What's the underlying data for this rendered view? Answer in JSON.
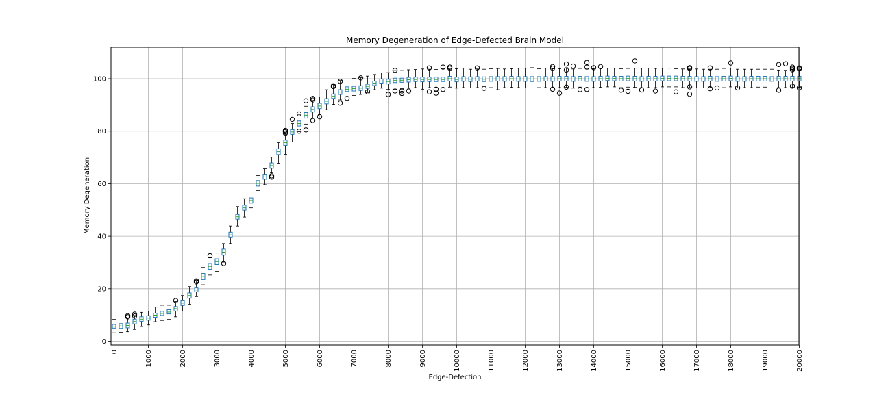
{
  "chart_data": {
    "type": "boxplot",
    "title": "Memory Degeneration of Edge-Defected Brain Model",
    "xlabel": "Edge-Defection",
    "ylabel": "Memory Degeneration",
    "ylim": [
      -1.5,
      112
    ],
    "xlim": [
      0,
      20000
    ],
    "grid": true,
    "x_tick_labels": [
      "0",
      "1000",
      "2000",
      "3000",
      "4000",
      "5000",
      "6000",
      "7000",
      "8000",
      "9000",
      "10000",
      "11000",
      "12000",
      "13000",
      "14000",
      "15000",
      "16000",
      "17000",
      "18000",
      "19000",
      "20000"
    ],
    "y_ticks": [
      0,
      20,
      40,
      60,
      80,
      100
    ],
    "box_color": "#1f77b4",
    "median_color": "#2ca02c",
    "whisker_color": "#000000",
    "x": [
      0,
      200,
      400,
      600,
      800,
      1000,
      1200,
      1400,
      1600,
      1800,
      2000,
      2200,
      2400,
      2600,
      2800,
      3000,
      3200,
      3400,
      3600,
      3800,
      4000,
      4200,
      4400,
      4600,
      4800,
      5000,
      5200,
      5400,
      5600,
      5800,
      6000,
      6200,
      6400,
      6600,
      6800,
      7000,
      7200,
      7400,
      7600,
      7800,
      8000,
      8200,
      8400,
      8600,
      8800,
      9000,
      9200,
      9400,
      9600,
      9800,
      10000,
      10200,
      10400,
      10600,
      10800,
      11000,
      11200,
      11400,
      11600,
      11800,
      12000,
      12200,
      12400,
      12600,
      12800,
      13000,
      13200,
      13400,
      13600,
      13800,
      14000,
      14200,
      14400,
      14600,
      14800,
      15000,
      15200,
      15400,
      15600,
      15800,
      16000,
      16200,
      16400,
      16600,
      16800,
      17000,
      17200,
      17400,
      17600,
      17800,
      18000,
      18200,
      18400,
      18600,
      18800,
      19000,
      19200,
      19400,
      19600,
      19800,
      20000
    ],
    "medians": [
      5.7,
      5.8,
      6,
      7.5,
      8.4,
      8.8,
      9.9,
      10.6,
      11.1,
      12.4,
      14.5,
      17.4,
      19.5,
      24.6,
      28.5,
      30.3,
      33.9,
      40.5,
      47.4,
      50.8,
      53.6,
      60.1,
      62.6,
      66.9,
      72.2,
      75.6,
      79.7,
      82.9,
      86.1,
      88.3,
      89.6,
      91.4,
      93.3,
      94.9,
      96,
      96.2,
      96.4,
      97.1,
      98.3,
      99.1,
      98.9,
      99.3,
      99.4,
      99.6,
      99.7,
      99.7,
      99.7,
      99.7,
      99.7,
      100,
      99.7,
      99.9,
      99.8,
      99.9,
      99.8,
      99.9,
      99.9,
      99.9,
      100,
      99.9,
      99.9,
      99.9,
      99.9,
      99.9,
      99.9,
      100,
      100,
      99.9,
      100,
      99.9,
      99.9,
      100,
      100.1,
      100.1,
      100,
      100.1,
      100,
      99.9,
      100,
      100,
      100.1,
      100.1,
      100.1,
      100,
      100,
      99.9,
      99.9,
      100,
      99.9,
      100,
      100.1,
      99.9,
      99.9,
      100,
      100,
      100,
      99.9,
      100,
      100,
      100,
      100
    ],
    "q1": [
      5,
      4.9,
      5.1,
      6.6,
      7.6,
      8,
      9.1,
      9.8,
      10.4,
      11.5,
      13.6,
      16.4,
      18.8,
      23.5,
      27.4,
      29.2,
      32.8,
      39.7,
      46.5,
      49.9,
      52.6,
      59.1,
      61.7,
      65.9,
      71.1,
      74.6,
      78.8,
      82,
      85,
      87.3,
      88.6,
      90.4,
      92.5,
      94,
      95.1,
      95.3,
      95.5,
      96.3,
      97.4,
      98.3,
      98,
      98.5,
      98.6,
      98.7,
      98.9,
      98.8,
      98.9,
      98.9,
      98.9,
      99.1,
      98.8,
      99,
      98.9,
      99.1,
      98.9,
      99,
      99.1,
      99,
      99.1,
      99,
      99,
      98.9,
      99,
      99.1,
      99,
      99.1,
      99.1,
      99,
      99.1,
      99,
      99,
      99.1,
      99.3,
      99.2,
      99.1,
      99.2,
      99.1,
      99,
      99.1,
      99.1,
      99.2,
      99.2,
      99.2,
      99.1,
      99.1,
      99,
      99,
      99.1,
      99,
      99.1,
      99.2,
      99,
      99,
      99.1,
      99.1,
      99.1,
      99,
      99.1,
      99.1,
      99.1,
      99.1
    ],
    "q3": [
      6.4,
      6.7,
      6.9,
      8.4,
      9.3,
      9.7,
      10.7,
      11.4,
      12,
      13.2,
      15.4,
      18.4,
      20.3,
      25.8,
      29.6,
      31.4,
      35.1,
      41.5,
      48.3,
      51.8,
      54.6,
      61.2,
      63.6,
      67.9,
      73.3,
      76.6,
      80.6,
      83.9,
      87.1,
      89.3,
      90.6,
      92.4,
      94.2,
      95.8,
      96.9,
      97.1,
      97.3,
      97.9,
      99.1,
      99.9,
      99.8,
      100.2,
      100.2,
      100.5,
      100.6,
      100.6,
      100.6,
      100.6,
      100.6,
      100.9,
      100.6,
      100.8,
      100.7,
      100.8,
      100.7,
      100.8,
      100.8,
      100.8,
      100.9,
      100.8,
      100.8,
      100.8,
      100.8,
      100.8,
      100.8,
      100.9,
      100.9,
      100.8,
      100.9,
      100.8,
      100.8,
      100.9,
      101,
      100.9,
      100.9,
      101,
      100.9,
      100.8,
      100.9,
      100.9,
      101,
      101,
      101,
      100.9,
      100.9,
      100.8,
      100.8,
      100.9,
      100.8,
      100.9,
      101,
      100.8,
      100.8,
      100.9,
      100.9,
      100.9,
      100.8,
      100.9,
      100.9,
      100.9,
      100.9
    ],
    "whisker_low": [
      3.2,
      3.4,
      3.6,
      4.5,
      5.6,
      6.2,
      7.4,
      7.9,
      8.3,
      9.3,
      11.5,
      14.1,
      17,
      21.5,
      25.2,
      26.6,
      30.1,
      37.2,
      43.9,
      47.3,
      50.8,
      57.4,
      59.6,
      64.1,
      67.8,
      71.2,
      75.9,
      79.8,
      82.7,
      84.8,
      86.4,
      88.2,
      90.2,
      91.9,
      93.1,
      93.6,
      94,
      94.7,
      95.8,
      96.4,
      95.9,
      96,
      96.2,
      96.4,
      96.6,
      96,
      96.6,
      96.6,
      96.5,
      96.8,
      96.4,
      96.6,
      96.5,
      96.6,
      96.5,
      96.6,
      95.8,
      96.6,
      96.7,
      96.6,
      96.5,
      96.5,
      96.6,
      96.6,
      96.6,
      96.6,
      96.7,
      96.4,
      96.8,
      96.5,
      96.6,
      96.7,
      96.9,
      96.9,
      96.6,
      96.8,
      96.7,
      96.6,
      96.6,
      96.6,
      96.9,
      96.9,
      96.9,
      96.6,
      96.6,
      96.5,
      96.5,
      96.6,
      96.5,
      96.6,
      96.9,
      96.5,
      96.6,
      96.6,
      96.8,
      96.8,
      96.5,
      96.6,
      96.6,
      96.7,
      96.7
    ],
    "whisker_high": [
      8.3,
      8.1,
      8.8,
      9.8,
      11,
      11.5,
      13,
      13.7,
      13.7,
      15.1,
      17.4,
      20.8,
      23.1,
      28.1,
      31.8,
      33.6,
      37.2,
      43.9,
      51.3,
      54.3,
      57.6,
      63.1,
      65.7,
      70.1,
      75.6,
      78.7,
      82.9,
      86.4,
      89.5,
      91.5,
      93.1,
      95.8,
      97.8,
      99.3,
      99.9,
      100.1,
      100.4,
      101,
      101.6,
      102.2,
      102.3,
      103.1,
      103.1,
      103.4,
      103.5,
      103.7,
      103.6,
      103.5,
      103.9,
      103.7,
      103.8,
      104,
      103.6,
      103.7,
      103.6,
      103.8,
      103.9,
      103.7,
      103.8,
      104,
      104,
      104.2,
      103.8,
      104,
      104,
      103.8,
      104.2,
      103.7,
      103.9,
      103.7,
      103.8,
      103.9,
      104,
      104,
      103.8,
      103.9,
      104,
      104,
      104,
      103.9,
      104,
      104,
      103.8,
      103.7,
      103.7,
      103.7,
      103.6,
      103.6,
      103.6,
      103.9,
      104,
      103.6,
      103.6,
      103.6,
      103.6,
      103.6,
      103.6,
      103.3,
      103.2,
      103.5,
      103.3
    ],
    "outliers": [
      [
        400,
        9.3
      ],
      [
        400,
        9.7
      ],
      [
        600,
        9.6
      ],
      [
        600,
        10.3
      ],
      [
        1800,
        15.5
      ],
      [
        2400,
        22.6
      ],
      [
        2400,
        23
      ],
      [
        2800,
        32.6
      ],
      [
        3200,
        29.6
      ],
      [
        4600,
        62.5
      ],
      [
        4600,
        63
      ],
      [
        5000,
        79.2
      ],
      [
        5000,
        79.8
      ],
      [
        5000,
        80.3
      ],
      [
        5200,
        84.5
      ],
      [
        5400,
        80
      ],
      [
        5400,
        86.6
      ],
      [
        5600,
        80.5
      ],
      [
        5600,
        91.6
      ],
      [
        5800,
        84.1
      ],
      [
        5800,
        91.9
      ],
      [
        5800,
        92.5
      ],
      [
        6000,
        85.5
      ],
      [
        6400,
        97.3
      ],
      [
        6400,
        97
      ],
      [
        6600,
        90.7
      ],
      [
        6600,
        99
      ],
      [
        6800,
        92.5
      ],
      [
        7200,
        100.3
      ],
      [
        7400,
        95
      ],
      [
        8000,
        94
      ],
      [
        8200,
        95.3
      ],
      [
        8200,
        103.2
      ],
      [
        8400,
        94.4
      ],
      [
        8400,
        95.3
      ],
      [
        8600,
        95.3
      ],
      [
        9200,
        95
      ],
      [
        9200,
        104.1
      ],
      [
        9400,
        94.5
      ],
      [
        9400,
        96
      ],
      [
        9600,
        95.9
      ],
      [
        9600,
        104.4
      ],
      [
        9800,
        104
      ],
      [
        9800,
        104.4
      ],
      [
        10600,
        104.1
      ],
      [
        10800,
        96.3
      ],
      [
        12800,
        96
      ],
      [
        12800,
        104
      ],
      [
        12800,
        104.6
      ],
      [
        13000,
        94.5
      ],
      [
        13200,
        96.8
      ],
      [
        13200,
        103.3
      ],
      [
        13200,
        105.6
      ],
      [
        13400,
        104.8
      ],
      [
        13600,
        95.8
      ],
      [
        13800,
        95.9
      ],
      [
        13800,
        104.4
      ],
      [
        13800,
        106.2
      ],
      [
        14000,
        104.2
      ],
      [
        14200,
        104.6
      ],
      [
        14800,
        95.6
      ],
      [
        15000,
        95.2
      ],
      [
        15200,
        106.8
      ],
      [
        15400,
        95.7
      ],
      [
        15800,
        95.3
      ],
      [
        16400,
        95
      ],
      [
        16800,
        94.1
      ],
      [
        16800,
        96.9
      ],
      [
        16800,
        103.9
      ],
      [
        16800,
        104.2
      ],
      [
        17400,
        96.2
      ],
      [
        17400,
        104.1
      ],
      [
        17600,
        96.5
      ],
      [
        18000,
        106
      ],
      [
        18200,
        96.5
      ],
      [
        19400,
        95.6
      ],
      [
        19400,
        105.4
      ],
      [
        19600,
        105.7
      ],
      [
        19800,
        97.2
      ],
      [
        19800,
        103.4
      ],
      [
        19800,
        103.9
      ],
      [
        19800,
        104.4
      ],
      [
        20000,
        96.5
      ],
      [
        20000,
        103.8
      ],
      [
        20000,
        104.1
      ]
    ]
  }
}
